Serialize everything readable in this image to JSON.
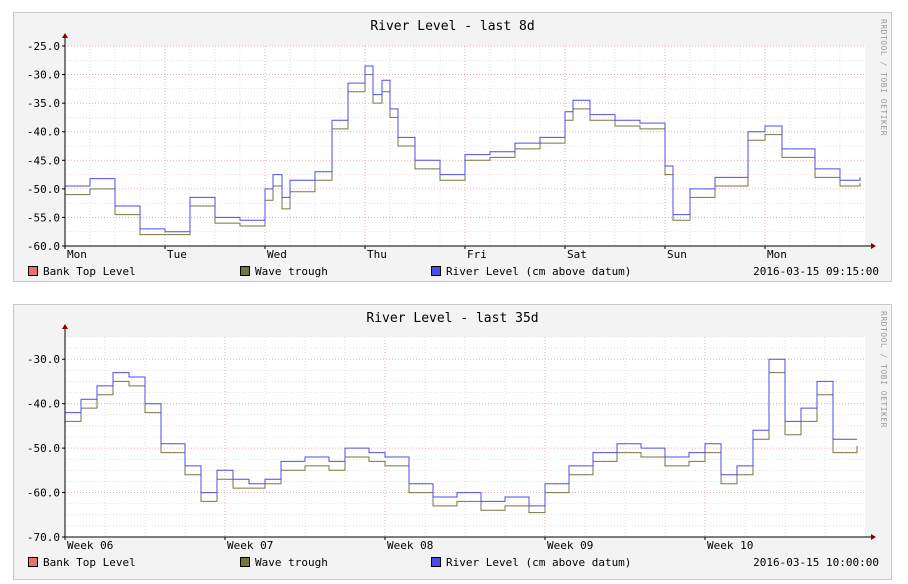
{
  "colors": {
    "bank_top": "#e87070",
    "wave_trough": "#767642",
    "river_level": "#4c4ce8",
    "grid": "#e7a0a0",
    "minor_grid": "#d9c9c9",
    "axis": "#8b0000"
  },
  "watermark": "RRDTOOL / TOBI OETIKER",
  "chart_data": [
    {
      "type": "line",
      "title": "River Level - last 8d",
      "timestamp": "2016-03-15 09:15:00",
      "ylim": [
        -60,
        -25
      ],
      "yticks": [
        "-25.0",
        "-30.0",
        "-35.0",
        "-40.0",
        "-45.0",
        "-50.0",
        "-55.0",
        "-60.0"
      ],
      "xticks": [
        "Mon",
        "Tue",
        "Wed",
        "Thu",
        "Fri",
        "Sat",
        "Sun",
        "Mon"
      ],
      "xrange": [
        0,
        8
      ],
      "legend": [
        "Bank Top Level",
        "Wave trough",
        "River Level (cm above datum)"
      ],
      "x": [
        0,
        0.25,
        0.5,
        0.75,
        1.0,
        1.25,
        1.5,
        1.75,
        2.0,
        2.08,
        2.17,
        2.25,
        2.5,
        2.67,
        2.83,
        3.0,
        3.08,
        3.17,
        3.25,
        3.33,
        3.5,
        3.75,
        4.0,
        4.25,
        4.5,
        4.75,
        5.0,
        5.08,
        5.25,
        5.5,
        5.75,
        6.0,
        6.08,
        6.25,
        6.5,
        6.67,
        6.83,
        7.0,
        7.17,
        7.5,
        7.75,
        7.95
      ],
      "series": [
        {
          "name": "River Level (cm above datum)",
          "values": [
            -49.5,
            -48.2,
            -53.0,
            -57.0,
            -57.5,
            -51.5,
            -55.0,
            -55.5,
            -50.0,
            -47.5,
            -51.5,
            -48.5,
            -47.0,
            -38.0,
            -31.5,
            -28.5,
            -33.5,
            -31.0,
            -36.0,
            -41.0,
            -45.0,
            -47.5,
            -44.0,
            -43.5,
            -42.0,
            -41.0,
            -36.5,
            -34.5,
            -37.0,
            -38.0,
            -38.5,
            -46.0,
            -54.5,
            -50.0,
            -48.0,
            -48.0,
            -40.0,
            -39.0,
            -43.0,
            -46.5,
            -48.5,
            -48.0
          ]
        },
        {
          "name": "Wave trough",
          "values": [
            -51.0,
            -50.0,
            -54.5,
            -58.0,
            -58.0,
            -53.0,
            -56.0,
            -56.5,
            -52.0,
            -49.5,
            -53.5,
            -50.5,
            -48.5,
            -39.5,
            -33.0,
            -30.0,
            -35.0,
            -33.0,
            -37.5,
            -42.5,
            -46.5,
            -48.5,
            -45.0,
            -44.5,
            -43.0,
            -42.0,
            -38.0,
            -36.0,
            -38.0,
            -39.0,
            -39.5,
            -47.5,
            -55.5,
            -51.5,
            -49.5,
            -49.5,
            -41.5,
            -40.5,
            -44.5,
            -48.0,
            -49.5,
            -49.0
          ]
        }
      ]
    },
    {
      "type": "line",
      "title": "River Level - last 35d",
      "timestamp": "2016-03-15 10:00:00",
      "ylim": [
        -70,
        -25
      ],
      "yticks": [
        "-30.0",
        "-40.0",
        "-50.0",
        "-60.0",
        "-70.0"
      ],
      "xticks": [
        "Week 06",
        "Week 07",
        "Week 08",
        "Week 09",
        "Week 10"
      ],
      "xrange": [
        0,
        5
      ],
      "legend": [
        "Bank Top Level",
        "Wave trough",
        "River Level (cm above datum)"
      ],
      "x": [
        0,
        0.1,
        0.2,
        0.3,
        0.4,
        0.5,
        0.6,
        0.75,
        0.85,
        0.95,
        1.05,
        1.15,
        1.25,
        1.35,
        1.5,
        1.65,
        1.75,
        1.9,
        2.0,
        2.15,
        2.3,
        2.45,
        2.6,
        2.75,
        2.9,
        3.0,
        3.15,
        3.3,
        3.45,
        3.6,
        3.75,
        3.9,
        4.0,
        4.1,
        4.2,
        4.3,
        4.4,
        4.5,
        4.6,
        4.7,
        4.8,
        4.95
      ],
      "series": [
        {
          "name": "River Level (cm above datum)",
          "values": [
            -42.0,
            -39.0,
            -36.0,
            -33.0,
            -34.0,
            -40.0,
            -49.0,
            -54.0,
            -60.0,
            -55.0,
            -57.0,
            -58.0,
            -57.0,
            -53.0,
            -52.0,
            -53.0,
            -50.0,
            -51.0,
            -52.0,
            -58.0,
            -61.0,
            -60.0,
            -62.0,
            -61.0,
            -63.0,
            -58.0,
            -54.0,
            -51.0,
            -49.0,
            -50.0,
            -52.0,
            -51.0,
            -49.0,
            -56.0,
            -54.0,
            -46.0,
            -30.0,
            -44.0,
            -41.0,
            -35.0,
            -48.0,
            -48.0
          ]
        },
        {
          "name": "Wave trough",
          "values": [
            -44.0,
            -41.0,
            -38.0,
            -35.0,
            -36.0,
            -42.0,
            -51.0,
            -56.0,
            -62.0,
            -57.0,
            -59.0,
            -59.0,
            -58.0,
            -55.0,
            -54.0,
            -55.0,
            -52.0,
            -53.0,
            -54.0,
            -60.0,
            -63.0,
            -62.0,
            -64.0,
            -63.0,
            -64.5,
            -60.0,
            -56.0,
            -53.0,
            -51.0,
            -52.0,
            -54.0,
            -53.0,
            -51.0,
            -58.0,
            -56.0,
            -48.0,
            -33.0,
            -47.0,
            -44.0,
            -38.0,
            -51.0,
            -49.5
          ]
        }
      ]
    }
  ]
}
